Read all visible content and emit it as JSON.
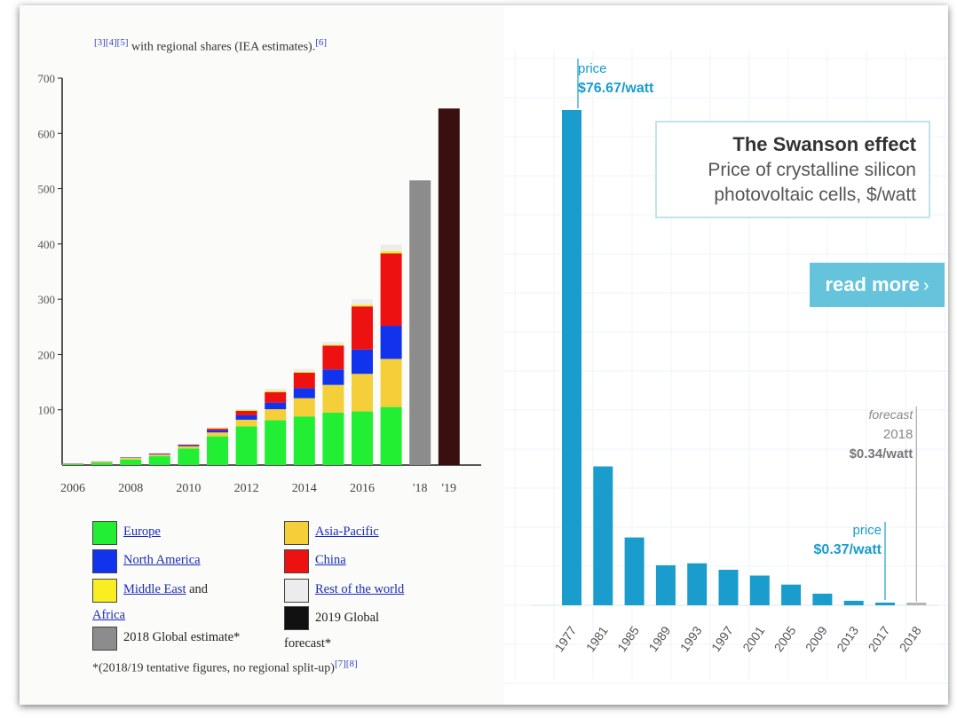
{
  "left": {
    "caption": {
      "refs_pre": "[3][4][5]",
      "text": "with regional shares (IEA estimates).",
      "ref_post": "[6]"
    },
    "legend": [
      {
        "label": "Europe",
        "color": "#22ee33",
        "link": true
      },
      {
        "label": "Asia-Pacific",
        "color": "#f4cf3a",
        "link": true
      },
      {
        "label": "North America",
        "color": "#1133ee",
        "link": true
      },
      {
        "label": "China",
        "color": "#ee1111",
        "link": true
      },
      {
        "label": "Middle East",
        "suffix": "and",
        "color": "#f8ee22",
        "link": true
      },
      {
        "label": "Rest of the world",
        "color": "#ececec",
        "link": true
      },
      {
        "label": "Africa",
        "link": true
      },
      {
        "label": "2019 Global",
        "label2": "forecast*",
        "color": "#111111",
        "link": false
      },
      {
        "label": "2018 Global estimate*",
        "color": "#8c8c8c",
        "link": false
      }
    ],
    "note": {
      "text": "*(2018/19 tentative figures, no regional split-up)",
      "refs": "[7][8]"
    }
  },
  "right": {
    "title": "The Swanson effect",
    "subtitle_line1": "Price of crystalline silicon",
    "subtitle_line2": "photovoltaic cells, $/watt",
    "read_more": "read more",
    "annotations": {
      "first_label": "price",
      "first_value": "$76.67/watt",
      "forecast_label": "forecast",
      "forecast_year": "2018",
      "forecast_value": "$0.34/watt",
      "last_label": "price",
      "last_value": "$0.37/watt"
    }
  },
  "chart_data": [
    {
      "type": "bar",
      "stacked": true,
      "title": "",
      "xlabel": "",
      "ylabel": "",
      "ylim": [
        0,
        700
      ],
      "yticks": [
        100,
        200,
        300,
        400,
        500,
        600,
        700
      ],
      "x_tick_labels": [
        "2006",
        "2008",
        "2010",
        "2012",
        "2014",
        "2016",
        "'18",
        "'19"
      ],
      "categories": [
        "2006",
        "2007",
        "2008",
        "2009",
        "2010",
        "2011",
        "2012",
        "2013",
        "2014",
        "2015",
        "2016",
        "2017",
        "2018",
        "2019"
      ],
      "series": [
        {
          "name": "Europe",
          "color": "#22ee33",
          "values": [
            1.5,
            4,
            10,
            16,
            30,
            52,
            70,
            81,
            88,
            95,
            97,
            105,
            null,
            null
          ]
        },
        {
          "name": "Asia-Pacific",
          "color": "#f4cf3a",
          "values": [
            1,
            2,
            3,
            3,
            4,
            7,
            12,
            20,
            33,
            50,
            68,
            87,
            null,
            null
          ]
        },
        {
          "name": "North America",
          "color": "#1133ee",
          "values": [
            0.5,
            0.5,
            1,
            1.5,
            2,
            4,
            8,
            12,
            18,
            28,
            44,
            60,
            null,
            null
          ]
        },
        {
          "name": "China",
          "color": "#ee1111",
          "values": [
            0,
            0,
            0,
            0.5,
            1,
            3,
            8,
            19,
            28,
            43,
            78,
            131,
            null,
            null
          ]
        },
        {
          "name": "Middle East and Africa",
          "color": "#f8ee22",
          "values": [
            0,
            0,
            0,
            0,
            0.5,
            1,
            1.5,
            2,
            2,
            2,
            3,
            4,
            null,
            null
          ]
        },
        {
          "name": "Rest of the world",
          "color": "#ececec",
          "values": [
            0,
            0,
            0.5,
            1,
            1,
            2,
            2,
            4,
            5,
            5,
            10,
            12,
            null,
            null
          ]
        },
        {
          "name": "2018 Global estimate*",
          "color": "#8c8c8c",
          "values": [
            null,
            null,
            null,
            null,
            null,
            null,
            null,
            null,
            null,
            null,
            null,
            null,
            515,
            null
          ]
        },
        {
          "name": "2019 Global forecast*",
          "color": "#3a0f0f",
          "values": [
            null,
            null,
            null,
            null,
            null,
            null,
            null,
            null,
            null,
            null,
            null,
            null,
            null,
            645
          ]
        }
      ],
      "legend_position": "bottom",
      "grid": false
    },
    {
      "type": "bar",
      "title": "The Swanson effect",
      "subtitle": "Price of crystalline silicon photovoltaic cells, $/watt",
      "xlabel": "",
      "ylabel": "",
      "ylim": [
        0,
        90
      ],
      "categories": [
        "1977",
        "1981",
        "1985",
        "1989",
        "1993",
        "1997",
        "2001",
        "2005",
        "2009",
        "2013",
        "2017",
        "2018"
      ],
      "values": [
        76.67,
        21.5,
        10.5,
        6.2,
        6.5,
        5.5,
        4.6,
        3.2,
        1.8,
        0.7,
        0.37,
        0.34
      ],
      "forecast_category": "2018",
      "bar_color": "#1a9ccc",
      "forecast_color": "#b5b5b5",
      "grid": true
    }
  ]
}
